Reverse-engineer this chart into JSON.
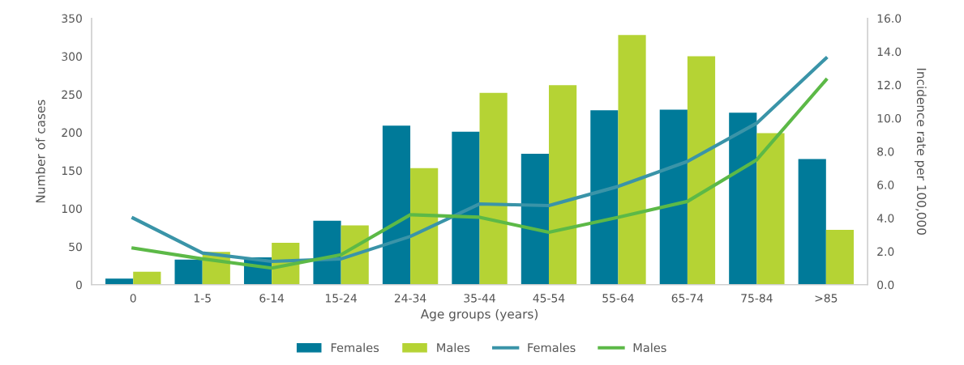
{
  "chart_data": {
    "type": "bar",
    "xlabel": "Age groups (years)",
    "ylabel": "Number of cases",
    "y2label": "Incidence rate per 100,000",
    "categories": [
      "0",
      "1-5",
      "6-14",
      "15-24",
      "24-34",
      "35-44",
      "45-54",
      "55-64",
      "65-74",
      "75-84",
      ">85"
    ],
    "series": [
      {
        "name": "Females",
        "type": "bar",
        "color": "#007a99",
        "values": [
          8,
          33,
          36,
          84,
          209,
          201,
          172,
          229,
          230,
          226,
          165
        ]
      },
      {
        "name": "Males",
        "type": "bar",
        "color": "#b5d334",
        "values": [
          17,
          43,
          55,
          78,
          153,
          252,
          262,
          328,
          300,
          199,
          72
        ]
      },
      {
        "name": "Females",
        "type": "line",
        "axis": "y2",
        "color": "#3a94a8",
        "values": [
          4.0,
          1.9,
          1.4,
          1.55,
          2.9,
          4.85,
          4.75,
          5.9,
          7.4,
          9.7,
          13.6
        ]
      },
      {
        "name": "Males",
        "type": "line",
        "axis": "y2",
        "color": "#5cb947",
        "values": [
          2.2,
          1.55,
          1.0,
          1.8,
          4.2,
          4.05,
          3.15,
          4.05,
          5.0,
          7.5,
          12.3
        ]
      }
    ],
    "ylim": [
      0,
      350
    ],
    "yticks": [
      0,
      50,
      100,
      150,
      200,
      250,
      300,
      350
    ],
    "y2lim": [
      0,
      16
    ],
    "y2ticks": [
      {
        "value": 0,
        "label": "0.0"
      },
      {
        "value": 2,
        "label": "2.0"
      },
      {
        "value": 4,
        "label": "4.0"
      },
      {
        "value": 6,
        "label": "6.0"
      },
      {
        "value": 8,
        "label": "8.0"
      },
      {
        "value": 10,
        "label": "10.0"
      },
      {
        "value": 12,
        "label": "12.0"
      },
      {
        "value": 14,
        "label": "14.0"
      },
      {
        "value": 16,
        "label": "16.0"
      }
    ],
    "grid": false,
    "legend": "bottom",
    "marker": "none",
    "line_style": "solid"
  }
}
